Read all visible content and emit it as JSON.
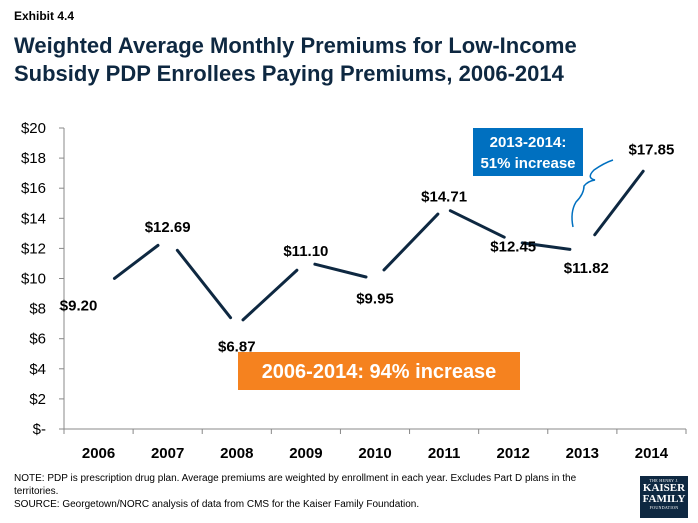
{
  "header": {
    "exhibit": "Exhibit 4.4",
    "title": "Weighted Average Monthly Premiums for Low-Income Subsidy PDP Enrollees Paying Premiums, 2006-2014"
  },
  "chart_data": {
    "type": "line",
    "title": "Weighted Average Monthly Premiums for Low-Income Subsidy PDP Enrollees Paying Premiums, 2006-2014",
    "xlabel": "",
    "ylabel": "",
    "categories": [
      "2006",
      "2007",
      "2008",
      "2009",
      "2010",
      "2011",
      "2012",
      "2013",
      "2014"
    ],
    "values": [
      9.2,
      12.69,
      6.87,
      11.1,
      9.95,
      14.71,
      12.45,
      11.82,
      17.85
    ],
    "data_labels": [
      "$9.20",
      "$12.69",
      "$6.87",
      "$11.10",
      "$9.95",
      "$14.71",
      "$12.45",
      "$11.82",
      "$17.85"
    ],
    "ylim": [
      0,
      20
    ],
    "y_ticks": [
      0,
      2,
      4,
      6,
      8,
      10,
      12,
      14,
      16,
      18,
      20
    ],
    "y_tick_labels": [
      "$-",
      "$2",
      "$4",
      "$6",
      "$8",
      "$10",
      "$12",
      "$14",
      "$16",
      "$18",
      "$20"
    ],
    "grid": false,
    "line_color": "#0e2841",
    "annotations": [
      {
        "text": "2006-2014:  94% increase",
        "color": "#f5821f",
        "text_color": "#ffffff"
      },
      {
        "line1": "2013-2014:",
        "line2": "51% increase",
        "color": "#0070c0",
        "text_color": "#ffffff"
      }
    ]
  },
  "notes": {
    "note": "NOTE: PDP is prescription drug plan. Average premiums are weighted by enrollment in each year.  Excludes Part D plans in the territories.",
    "source": "SOURCE: Georgetown/NORC analysis of data from CMS for the Kaiser Family Foundation."
  },
  "logo": {
    "line1": "THE HENRY J.",
    "line2": "KAISER",
    "line3": "FAMILY",
    "line4": "FOUNDATION"
  }
}
